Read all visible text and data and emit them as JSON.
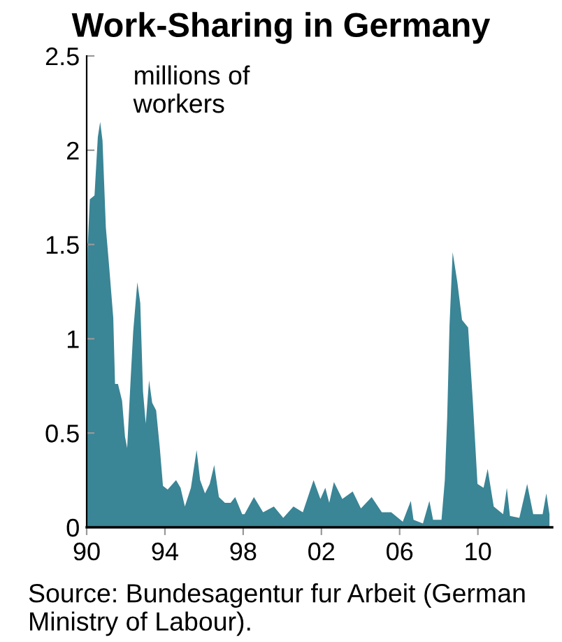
{
  "chart_data": {
    "type": "area",
    "title": "Work-Sharing in Germany",
    "annotations": [
      "millions of\nworkers",
      "Source: Bundesagentur fur Arbeit (German Ministry of Labour)."
    ],
    "xlim": [
      1990,
      2013.8
    ],
    "ylim": [
      0,
      2.5
    ],
    "xticks": [
      {
        "value": 1990,
        "label": "90"
      },
      {
        "value": 1994,
        "label": "94"
      },
      {
        "value": 1998,
        "label": "98"
      },
      {
        "value": 2002,
        "label": "02"
      },
      {
        "value": 2006,
        "label": "06"
      },
      {
        "value": 2010,
        "label": "10"
      }
    ],
    "yticks": [
      0,
      0.5,
      1,
      1.5,
      2,
      2.5
    ],
    "grid": false,
    "series": [
      {
        "color": "#3a8596",
        "x": [
          1990.0,
          1990.05,
          1990.16,
          1990.4,
          1990.57,
          1990.69,
          1990.81,
          1990.98,
          1991.16,
          1991.36,
          1991.45,
          1991.6,
          1991.81,
          1991.96,
          1992.07,
          1992.24,
          1992.38,
          1992.59,
          1992.74,
          1992.88,
          1993.02,
          1993.19,
          1993.35,
          1993.55,
          1993.74,
          1993.9,
          1994.14,
          1994.57,
          1994.8,
          1995.02,
          1995.33,
          1995.62,
          1995.8,
          1996.05,
          1996.29,
          1996.52,
          1996.76,
          1997.07,
          1997.36,
          1997.59,
          1997.95,
          1998.07,
          1998.55,
          1999.02,
          1999.57,
          2000.05,
          2000.57,
          2001.05,
          2001.6,
          2001.95,
          2002.2,
          2002.4,
          2002.64,
          2003.07,
          2003.6,
          2004.02,
          2004.57,
          2005.09,
          2005.57,
          2006.16,
          2006.57,
          2006.71,
          2007.19,
          2007.52,
          2007.71,
          2008.14,
          2008.31,
          2008.43,
          2008.55,
          2008.71,
          2008.95,
          2009.19,
          2009.5,
          2009.74,
          2009.98,
          2010.29,
          2010.5,
          2010.81,
          2011.29,
          2011.48,
          2011.64,
          2012.12,
          2012.52,
          2012.83,
          2013.31,
          2013.5,
          2013.66
        ],
        "values": [
          0.68,
          1.48,
          1.74,
          1.76,
          2.07,
          2.15,
          2.05,
          1.59,
          1.37,
          1.11,
          0.76,
          0.76,
          0.67,
          0.48,
          0.42,
          0.77,
          1.04,
          1.3,
          1.19,
          0.72,
          0.55,
          0.78,
          0.66,
          0.62,
          0.42,
          0.22,
          0.2,
          0.25,
          0.21,
          0.11,
          0.21,
          0.41,
          0.25,
          0.18,
          0.23,
          0.33,
          0.16,
          0.13,
          0.13,
          0.16,
          0.07,
          0.07,
          0.16,
          0.08,
          0.11,
          0.05,
          0.11,
          0.08,
          0.25,
          0.15,
          0.21,
          0.13,
          0.24,
          0.15,
          0.19,
          0.1,
          0.16,
          0.08,
          0.08,
          0.03,
          0.14,
          0.04,
          0.02,
          0.14,
          0.04,
          0.04,
          0.25,
          0.58,
          1.07,
          1.46,
          1.3,
          1.1,
          1.06,
          0.67,
          0.23,
          0.21,
          0.31,
          0.11,
          0.07,
          0.21,
          0.06,
          0.05,
          0.23,
          0.07,
          0.07,
          0.18,
          0.07
        ]
      }
    ]
  }
}
